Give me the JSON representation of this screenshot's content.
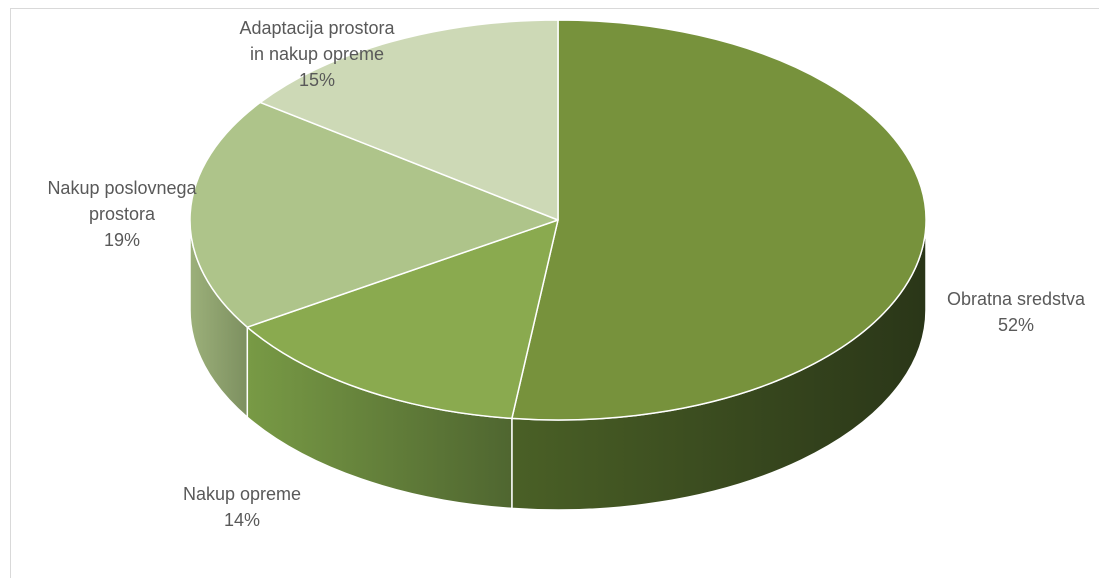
{
  "chart_data": {
    "type": "pie",
    "title": "",
    "style": "3d",
    "slices": [
      {
        "label_lines": [
          "Obratna sredstva"
        ],
        "value": 52,
        "percent_label": "52%",
        "color": "#77923c",
        "side_light": "#4a6026",
        "side_dark": "#2a3618"
      },
      {
        "label_lines": [
          "Nakup opreme"
        ],
        "value": 14,
        "percent_label": "14%",
        "color": "#8aaa4f",
        "side_light": "#789a45",
        "side_dark": "#4f6630"
      },
      {
        "label_lines": [
          "Nakup poslovnega",
          "prostora"
        ],
        "value": 19,
        "percent_label": "19%",
        "color": "#aec48a",
        "side_light": "#9cb07a",
        "side_dark": "#7d9060"
      },
      {
        "label_lines": [
          "Adaptacija prostora",
          "in nakup opreme"
        ],
        "value": 15,
        "percent_label": "15%",
        "color": "#cdd9b6",
        "side_light": "#b8c4a2",
        "side_dark": "#98a482"
      }
    ]
  }
}
